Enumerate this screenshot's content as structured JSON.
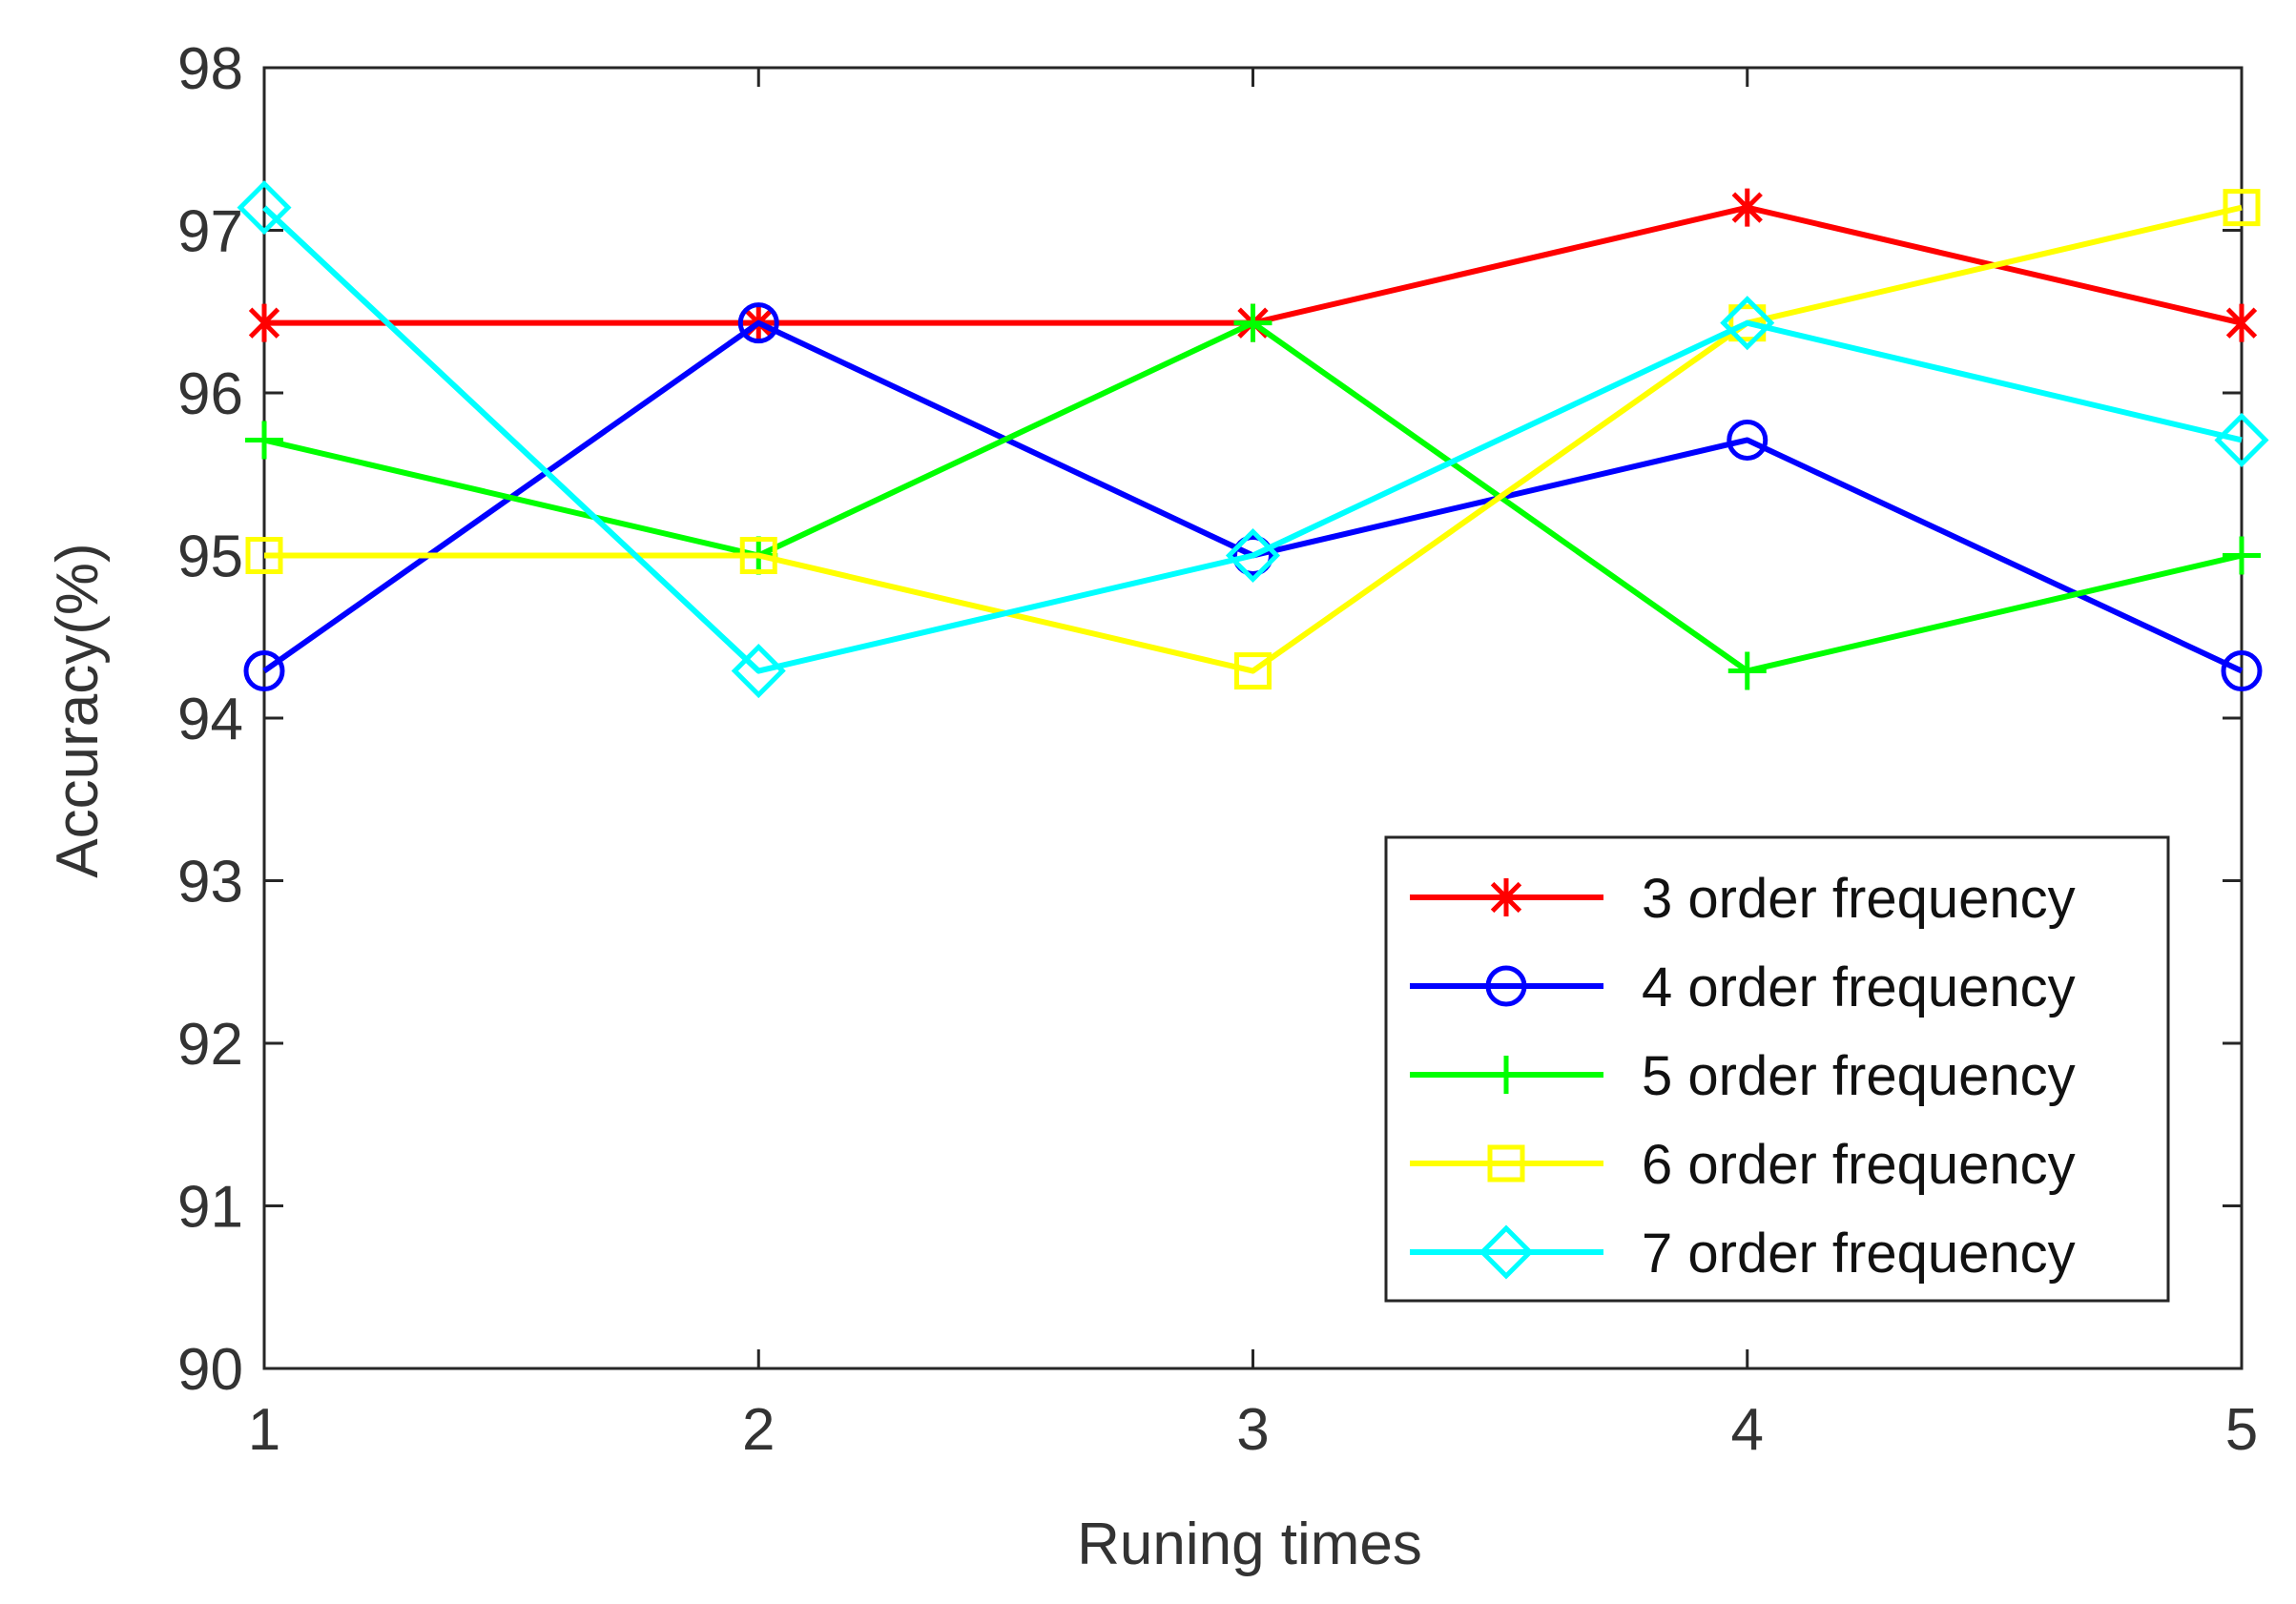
{
  "chart_data": {
    "type": "line",
    "xlabel": "Runing times",
    "ylabel": "Accuracy(%)",
    "xlim": [
      1,
      5
    ],
    "ylim": [
      90,
      98
    ],
    "x_ticks": [
      "1",
      "2",
      "3",
      "4",
      "5"
    ],
    "y_ticks": [
      "90",
      "91",
      "92",
      "93",
      "94",
      "95",
      "96",
      "97",
      "98"
    ],
    "grid": false,
    "legend_position": "lower-right",
    "x": [
      1,
      2,
      3,
      4,
      5
    ],
    "series": [
      {
        "name": "3 order frequency",
        "color": "#ff0000",
        "marker": "asterisk",
        "values": [
          96.43,
          96.43,
          96.43,
          97.14,
          96.43
        ]
      },
      {
        "name": "4 order frequency",
        "color": "#0000ff",
        "marker": "circle",
        "values": [
          94.29,
          96.43,
          95.0,
          95.71,
          94.29
        ]
      },
      {
        "name": "5 order frequency",
        "color": "#00ff00",
        "marker": "plus",
        "values": [
          95.71,
          95.0,
          96.43,
          94.29,
          95.0
        ]
      },
      {
        "name": "6 order frequency",
        "color": "#ffff00",
        "marker": "square",
        "values": [
          95.0,
          95.0,
          94.29,
          96.43,
          97.14
        ]
      },
      {
        "name": "7 order frequency",
        "color": "#00ffff",
        "marker": "diamond",
        "values": [
          97.14,
          94.29,
          95.0,
          96.43,
          95.71
        ]
      }
    ]
  }
}
